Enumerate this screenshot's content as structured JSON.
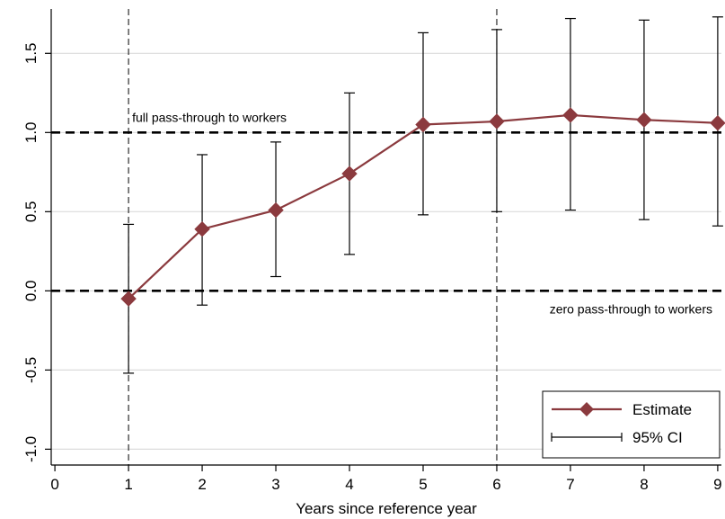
{
  "chart_data": {
    "type": "line",
    "xlabel": "Years since reference year",
    "ylabel": "",
    "x_ticks": [
      "0",
      "1",
      "2",
      "3",
      "4",
      "5",
      "6",
      "7",
      "8",
      "9"
    ],
    "y_ticks": [
      "-1.0",
      "-0.5",
      "0.0",
      "0.5",
      "1.0",
      "1.5"
    ],
    "xlim": [
      -0.05,
      9.05
    ],
    "ylim": [
      -1.1,
      1.78
    ],
    "grid": "horizontal",
    "series": [
      {
        "name": "Estimate",
        "color": "#8b3a3e",
        "marker": "diamond",
        "x": [
          1,
          2,
          3,
          4,
          5,
          6,
          7,
          8,
          9
        ],
        "y": [
          -0.05,
          0.39,
          0.51,
          0.74,
          1.05,
          1.07,
          1.11,
          1.08,
          1.06
        ]
      }
    ],
    "ci": {
      "name": "95% CI",
      "color": "#000000",
      "lower": [
        -0.52,
        -0.09,
        0.09,
        0.23,
        0.48,
        0.5,
        0.51,
        0.45,
        0.41
      ],
      "upper": [
        0.42,
        0.86,
        0.94,
        1.25,
        1.63,
        1.65,
        1.72,
        1.71,
        1.73
      ]
    },
    "reference_lines": [
      {
        "value": 1.0,
        "label": "full pass-through to workers"
      },
      {
        "value": 0.0,
        "label": "zero pass-through to workers"
      }
    ],
    "vertical_lines": [
      1,
      6
    ],
    "legend": {
      "placement": "bottom-right",
      "entries": [
        "Estimate",
        "95% CI"
      ]
    }
  }
}
